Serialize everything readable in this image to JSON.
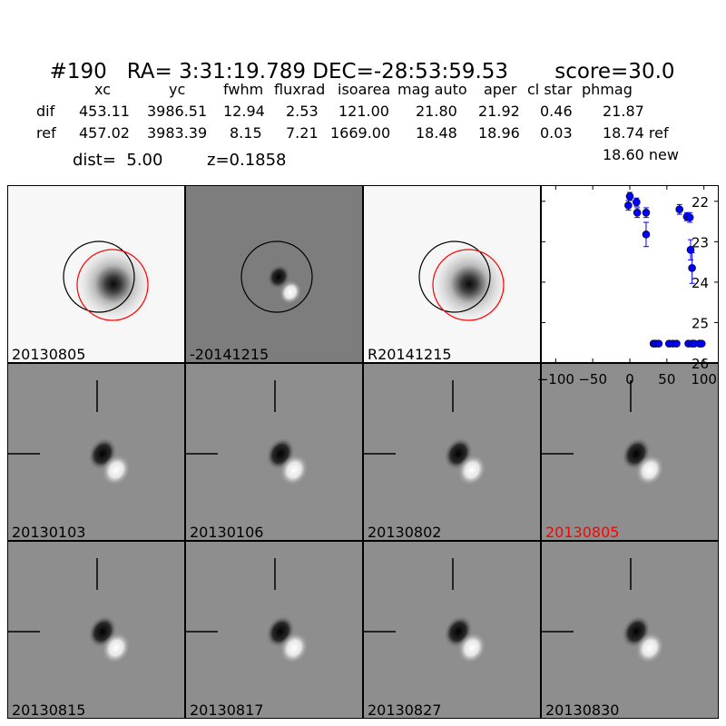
{
  "title": {
    "id": "#190",
    "ra": "RA= 3:31:19.789",
    "dec": "DEC=-28:53:59.53",
    "score": "score=30.0"
  },
  "table": {
    "headers": [
      "xc",
      "yc",
      "fwhm",
      "fluxrad",
      "isoarea",
      "mag auto",
      "aper",
      "cl star",
      "phmag"
    ],
    "rows": [
      {
        "label": "dif",
        "values": [
          "453.11",
          "3986.51",
          "12.94",
          "2.53",
          "121.00",
          "21.80",
          "21.92",
          "0.46",
          "21.87"
        ]
      },
      {
        "label": "ref",
        "values": [
          "457.02",
          "3983.39",
          "8.15",
          "7.21",
          "1669.00",
          "18.48",
          "18.96",
          "0.03",
          "18.74 ref"
        ]
      }
    ],
    "new_mag": "18.60 new"
  },
  "dist_text": "dist=  5.00",
  "z_text": "z=0.1858",
  "stamps_top": [
    {
      "label": "20130805",
      "kind": "galaxy",
      "circles": [
        "black",
        "red"
      ]
    },
    {
      "label": "-20141215",
      "kind": "diff",
      "circles": [
        "black"
      ]
    },
    {
      "label": "R20141215",
      "kind": "galaxy",
      "circles": [
        "black",
        "red"
      ]
    }
  ],
  "stamps_bottom": [
    {
      "label": "20130103",
      "highlight": false
    },
    {
      "label": "20130106",
      "highlight": false
    },
    {
      "label": "20130802",
      "highlight": false
    },
    {
      "label": "20130805",
      "highlight": true
    },
    {
      "label": "20130815",
      "highlight": false
    },
    {
      "label": "20130817",
      "highlight": false
    },
    {
      "label": "20130827",
      "highlight": false
    },
    {
      "label": "20130830",
      "highlight": false
    }
  ],
  "chart_data": {
    "type": "scatter",
    "title": "",
    "xlabel": "",
    "ylabel": "",
    "xlim": [
      -120,
      120
    ],
    "ylim": [
      26,
      21.6
    ],
    "y_inverted": true,
    "xticks": [
      -100,
      -50,
      0,
      50,
      100
    ],
    "xtick_labels": [
      "−100",
      "−50",
      "0",
      "50",
      "100"
    ],
    "yticks": [
      22,
      23,
      24,
      25,
      26
    ],
    "ytick_labels": [
      "22",
      "23",
      "24",
      "25",
      "26"
    ],
    "marker_color": "#0000ff",
    "points": [
      {
        "x": -2,
        "y": 22.1,
        "err": 0.12
      },
      {
        "x": 0,
        "y": 21.88,
        "err": 0.1
      },
      {
        "x": 9,
        "y": 22.02,
        "err": 0.1
      },
      {
        "x": 10,
        "y": 22.28,
        "err": 0.12
      },
      {
        "x": 22,
        "y": 22.28,
        "err": 0.12
      },
      {
        "x": 22,
        "y": 22.82,
        "err": 0.3
      },
      {
        "x": 32,
        "y": 25.52,
        "err": 0
      },
      {
        "x": 35,
        "y": 25.52,
        "err": 0
      },
      {
        "x": 39,
        "y": 25.52,
        "err": 0
      },
      {
        "x": 53,
        "y": 25.52,
        "err": 0
      },
      {
        "x": 58,
        "y": 25.52,
        "err": 0
      },
      {
        "x": 63,
        "y": 25.52,
        "err": 0
      },
      {
        "x": 67,
        "y": 22.2,
        "err": 0.12
      },
      {
        "x": 77,
        "y": 22.38,
        "err": 0.1
      },
      {
        "x": 81,
        "y": 22.4,
        "err": 0.12
      },
      {
        "x": 82,
        "y": 23.2,
        "err": 0.25
      },
      {
        "x": 84,
        "y": 23.65,
        "err": 0.38
      },
      {
        "x": 79,
        "y": 25.52,
        "err": 0
      },
      {
        "x": 84,
        "y": 25.52,
        "err": 0
      },
      {
        "x": 87,
        "y": 25.52,
        "err": 0
      },
      {
        "x": 94,
        "y": 25.52,
        "err": 0
      },
      {
        "x": 97,
        "y": 25.52,
        "err": 0
      }
    ]
  }
}
